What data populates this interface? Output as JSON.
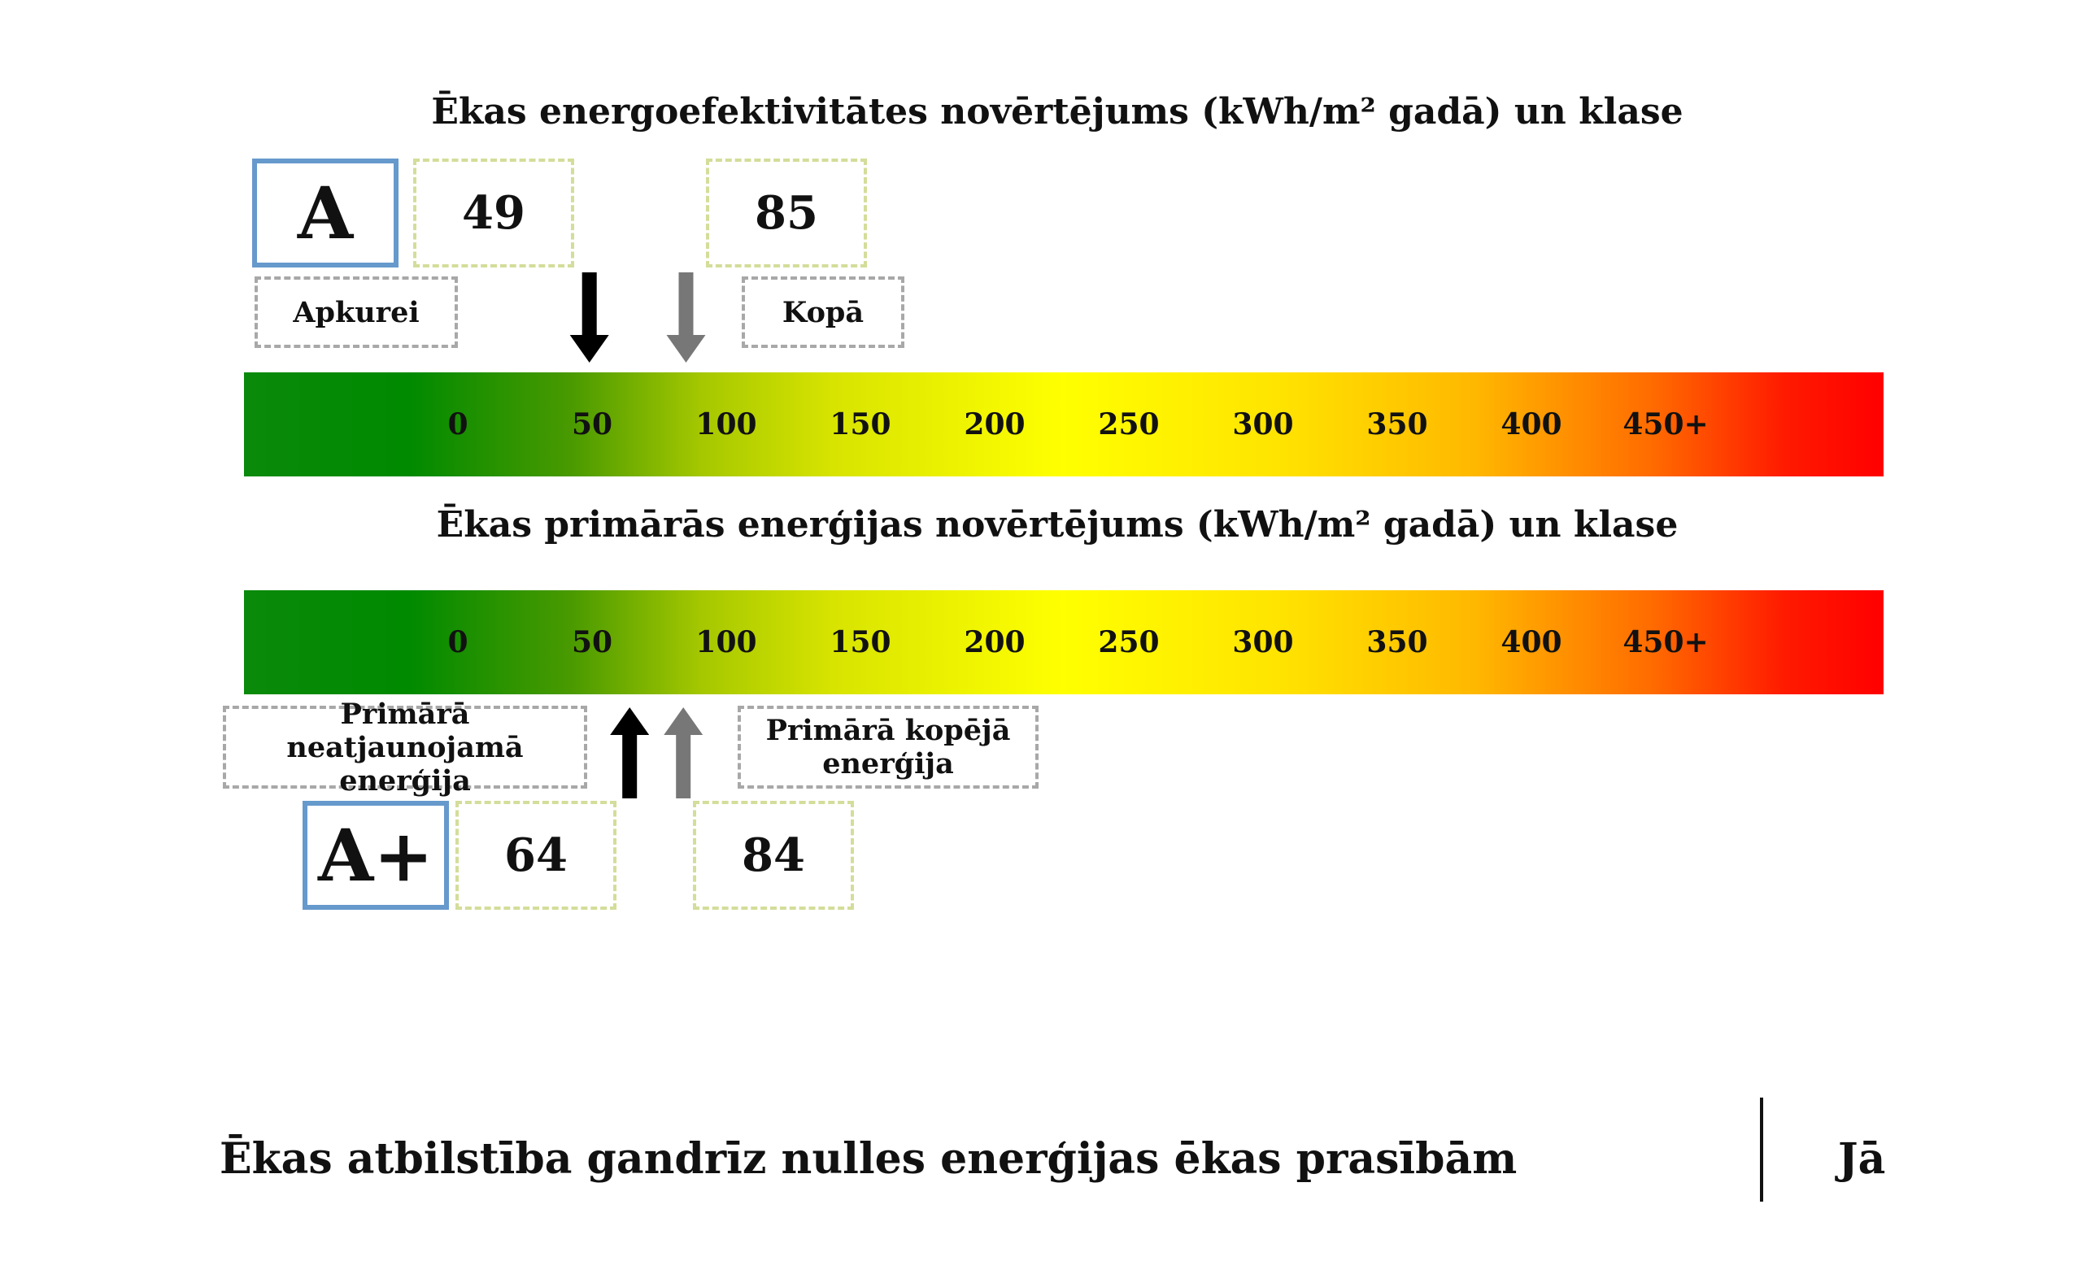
{
  "energy_efficiency": {
    "title": "Ēkas energoefektivitātes novērtējums (kWh/m² gadā) un klase",
    "class": "A",
    "heating_value": "49",
    "total_value": "85",
    "heating_label": "Apkurei",
    "total_label": "Kopā",
    "heating_marker": 49,
    "total_marker": 85,
    "scale_ticks": [
      "0",
      "50",
      "100",
      "150",
      "200",
      "250",
      "300",
      "350",
      "400",
      "450+"
    ]
  },
  "primary_energy": {
    "title": "Ēkas primārās enerģijas novērtējums (kWh/m² gadā) un klase",
    "class": "A+",
    "non_renewable_value": "64",
    "total_value": "84",
    "non_renewable_label": "Primārā neatjaunojamā enerģija",
    "total_label": "Primārā kopējā enerģija",
    "non_renewable_marker": 64,
    "total_marker": 84,
    "scale_ticks": [
      "0",
      "50",
      "100",
      "150",
      "200",
      "250",
      "300",
      "350",
      "400",
      "450+"
    ]
  },
  "compliance": {
    "label": "Ēkas atbilstība gandrīz nulles enerģijas ēkas prasībām",
    "value": "Jā"
  },
  "colors": {
    "class_border": "#6699cc",
    "value_border": "#d4dd9a",
    "label_border": "#a8a8a8",
    "arrow_primary": "#000000",
    "arrow_secondary": "#777777"
  }
}
